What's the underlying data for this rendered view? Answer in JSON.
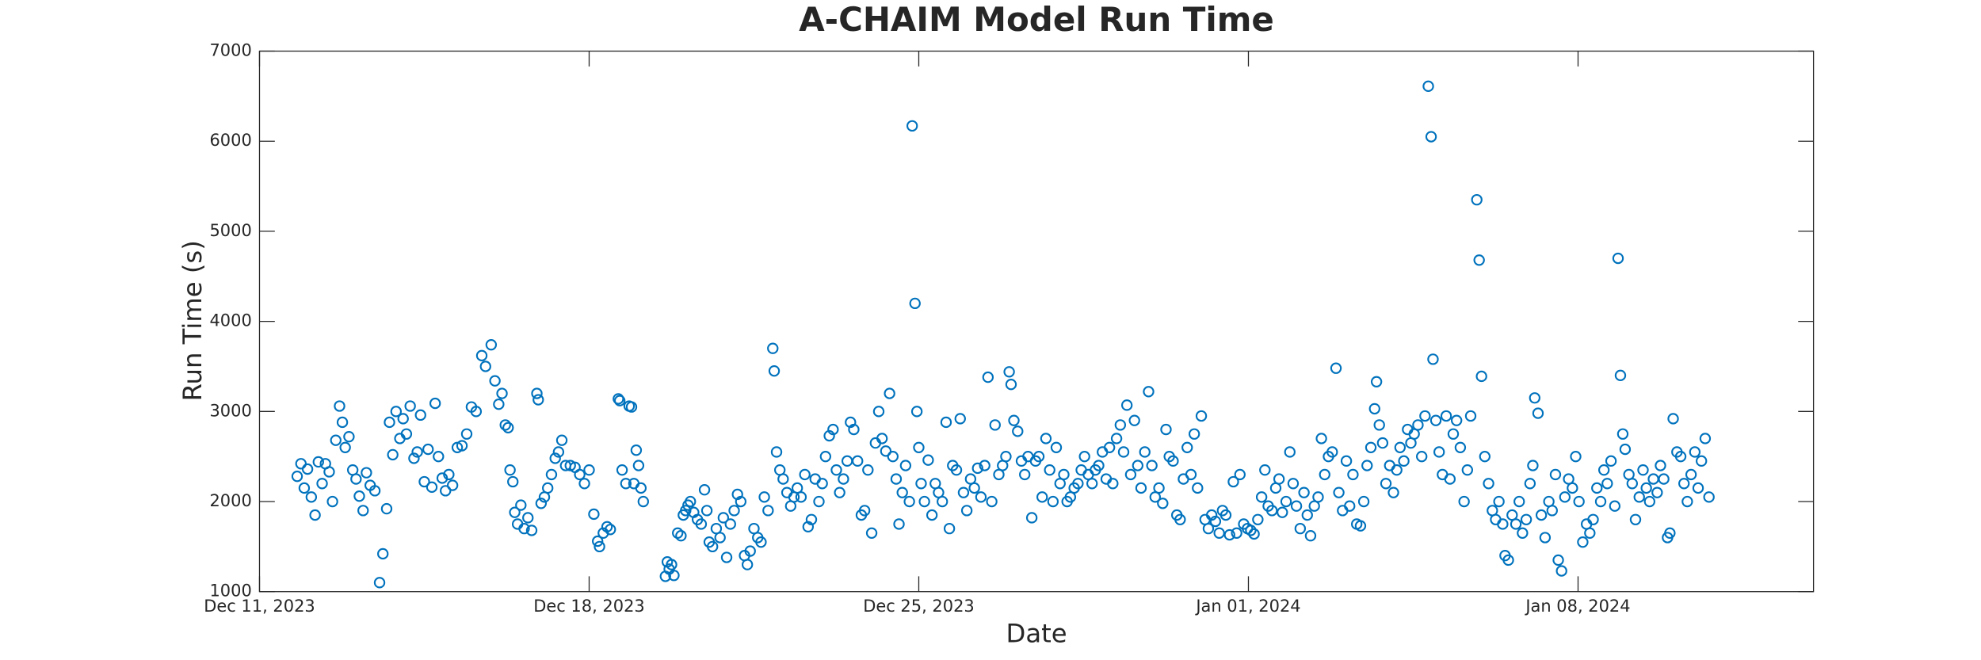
{
  "chart_data": {
    "type": "scatter",
    "title": "A-CHAIM Model Run Time",
    "xlabel": "Date",
    "ylabel": "Run Time (s)",
    "color": "#0072BD",
    "xlim": [
      0,
      33
    ],
    "xticks": [
      {
        "value": 0,
        "label": "Dec 11, 2023"
      },
      {
        "value": 7,
        "label": "Dec 18, 2023"
      },
      {
        "value": 14,
        "label": "Dec 25, 2023"
      },
      {
        "value": 21,
        "label": "Jan 01, 2024"
      },
      {
        "value": 28,
        "label": "Jan 08, 2024"
      }
    ],
    "ylim": [
      1000,
      7000
    ],
    "yticks": [
      1000,
      2000,
      3000,
      4000,
      5000,
      6000,
      7000
    ],
    "x": [
      0.8,
      0.88,
      0.95,
      1.02,
      1.1,
      1.18,
      1.25,
      1.33,
      1.4,
      1.48,
      1.55,
      1.62,
      1.7,
      1.76,
      1.82,
      1.9,
      1.98,
      2.05,
      2.12,
      2.2,
      2.27,
      2.35,
      2.45,
      2.55,
      2.62,
      2.7,
      2.76,
      2.83,
      2.9,
      2.98,
      3.05,
      3.12,
      3.2,
      3.28,
      3.35,
      3.42,
      3.5,
      3.58,
      3.66,
      3.73,
      3.8,
      3.88,
      3.95,
      4.02,
      4.1,
      4.2,
      4.3,
      4.4,
      4.5,
      4.6,
      4.72,
      4.8,
      4.92,
      5.0,
      5.08,
      5.15,
      5.22,
      5.28,
      5.32,
      5.38,
      5.42,
      5.48,
      5.55,
      5.62,
      5.7,
      5.78,
      5.89,
      5.92,
      5.98,
      6.05,
      6.12,
      6.2,
      6.28,
      6.35,
      6.42,
      6.5,
      6.6,
      6.7,
      6.8,
      6.9,
      7.0,
      7.1,
      7.18,
      7.22,
      7.3,
      7.38,
      7.45,
      7.62,
      7.65,
      7.7,
      7.78,
      7.85,
      7.9,
      7.95,
      8.0,
      8.05,
      8.1,
      8.15,
      8.62,
      8.66,
      8.7,
      8.75,
      8.8,
      8.88,
      8.95,
      9.0,
      9.05,
      9.1,
      9.15,
      9.22,
      9.3,
      9.38,
      9.45,
      9.5,
      9.55,
      9.62,
      9.7,
      9.78,
      9.85,
      9.92,
      10.0,
      10.08,
      10.15,
      10.22,
      10.3,
      10.36,
      10.42,
      10.5,
      10.58,
      10.65,
      10.72,
      10.8,
      10.9,
      10.93,
      10.98,
      11.05,
      11.12,
      11.2,
      11.28,
      11.35,
      11.42,
      11.5,
      11.58,
      11.65,
      11.72,
      11.8,
      11.88,
      11.95,
      12.02,
      12.1,
      12.18,
      12.25,
      12.32,
      12.4,
      12.48,
      12.55,
      12.62,
      12.7,
      12.78,
      12.85,
      12.92,
      13.0,
      13.08,
      13.15,
      13.22,
      13.3,
      13.38,
      13.45,
      13.52,
      13.58,
      13.65,
      13.72,
      13.8,
      13.86,
      13.92,
      13.96,
      14.0,
      14.05,
      14.12,
      14.2,
      14.28,
      14.35,
      14.42,
      14.5,
      14.58,
      14.65,
      14.72,
      14.8,
      14.88,
      14.95,
      15.02,
      15.1,
      15.18,
      15.25,
      15.32,
      15.4,
      15.47,
      15.55,
      15.62,
      15.7,
      15.78,
      15.85,
      15.92,
      15.96,
      16.02,
      16.1,
      16.18,
      16.25,
      16.32,
      16.4,
      16.48,
      16.55,
      16.62,
      16.7,
      16.78,
      16.85,
      16.92,
      17.0,
      17.08,
      17.15,
      17.22,
      17.3,
      17.38,
      17.45,
      17.52,
      17.6,
      17.68,
      17.75,
      17.82,
      17.9,
      17.98,
      18.05,
      18.12,
      18.2,
      18.28,
      18.35,
      18.42,
      18.5,
      18.58,
      18.65,
      18.72,
      18.8,
      18.88,
      18.95,
      19.02,
      19.1,
      19.18,
      19.25,
      19.32,
      19.4,
      19.48,
      19.55,
      19.62,
      19.7,
      19.78,
      19.85,
      19.92,
      20.0,
      20.08,
      20.15,
      20.22,
      20.3,
      20.38,
      20.45,
      20.52,
      20.6,
      20.68,
      20.75,
      20.82,
      20.9,
      20.98,
      21.05,
      21.12,
      21.2,
      21.28,
      21.35,
      21.42,
      21.5,
      21.58,
      21.65,
      21.72,
      21.8,
      21.88,
      21.95,
      22.02,
      22.1,
      22.18,
      22.25,
      22.32,
      22.4,
      22.48,
      22.55,
      22.62,
      22.7,
      22.78,
      22.86,
      22.92,
      23.0,
      23.08,
      23.15,
      23.22,
      23.3,
      23.38,
      23.45,
      23.52,
      23.6,
      23.68,
      23.72,
      23.78,
      23.85,
      23.92,
      24.0,
      24.08,
      24.15,
      24.22,
      24.3,
      24.38,
      24.45,
      24.52,
      24.6,
      24.68,
      24.75,
      24.82,
      24.88,
      24.92,
      24.98,
      25.05,
      25.12,
      25.2,
      25.28,
      25.35,
      25.42,
      25.5,
      25.58,
      25.65,
      25.72,
      25.85,
      25.9,
      25.95,
      26.02,
      26.1,
      26.18,
      26.25,
      26.32,
      26.4,
      26.45,
      26.52,
      26.6,
      26.68,
      26.75,
      26.82,
      26.9,
      26.98,
      27.04,
      27.08,
      27.15,
      27.22,
      27.3,
      27.38,
      27.45,
      27.52,
      27.58,
      27.65,
      27.72,
      27.8,
      27.88,
      27.95,
      28.02,
      28.1,
      28.18,
      28.25,
      28.32,
      28.4,
      28.48,
      28.55,
      28.62,
      28.7,
      28.78,
      28.85,
      28.9,
      28.95,
      29.0,
      29.08,
      29.15,
      29.22,
      29.3,
      29.38,
      29.45,
      29.52,
      29.6,
      29.68,
      29.75,
      29.82,
      29.9,
      29.95,
      30.02,
      30.1,
      30.18,
      30.25,
      30.32,
      30.4,
      30.48,
      30.55,
      30.62,
      30.7,
      30.78
    ],
    "values": [
      2280,
      2420,
      2150,
      2360,
      2050,
      1850,
      2440,
      2200,
      2420,
      2330,
      2000,
      2680,
      3060,
      2880,
      2600,
      2720,
      2350,
      2250,
      2060,
      1900,
      2320,
      2180,
      2120,
      1100,
      1420,
      1920,
      2880,
      2520,
      3000,
      2700,
      2920,
      2750,
      3060,
      2480,
      2550,
      2960,
      2220,
      2580,
      2160,
      3090,
      2500,
      2260,
      2120,
      2300,
      2180,
      2600,
      2620,
      2750,
      3050,
      3000,
      3620,
      3500,
      3740,
      3340,
      3080,
      3200,
      2850,
      2820,
      2350,
      2220,
      1880,
      1750,
      1960,
      1700,
      1820,
      1680,
      3200,
      3130,
      1980,
      2050,
      2150,
      2300,
      2480,
      2550,
      2680,
      2400,
      2400,
      2380,
      2300,
      2200,
      2350,
      1860,
      1560,
      1500,
      1650,
      1720,
      1690,
      3140,
      3120,
      2350,
      2200,
      3060,
      3050,
      2200,
      2570,
      2400,
      2150,
      2000,
      1170,
      1330,
      1250,
      1300,
      1180,
      1650,
      1620,
      1850,
      1900,
      1960,
      2000,
      1880,
      1800,
      1750,
      2130,
      1900,
      1550,
      1500,
      1700,
      1600,
      1820,
      1380,
      1750,
      1900,
      2080,
      2000,
      1400,
      1300,
      1450,
      1700,
      1600,
      1550,
      2050,
      1900,
      3700,
      3450,
      2550,
      2350,
      2250,
      2100,
      1950,
      2050,
      2150,
      2050,
      2300,
      1720,
      1800,
      2250,
      2000,
      2200,
      2500,
      2730,
      2800,
      2350,
      2100,
      2250,
      2450,
      2880,
      2800,
      2450,
      1850,
      1900,
      2350,
      1650,
      2650,
      3000,
      2700,
      2560,
      3200,
      2500,
      2250,
      1750,
      2100,
      2400,
      2000,
      6170,
      4200,
      3000,
      2600,
      2200,
      2000,
      2460,
      1850,
      2200,
      2100,
      2000,
      2880,
      1700,
      2400,
      2350,
      2920,
      2100,
      1900,
      2250,
      2150,
      2370,
      2050,
      2400,
      3380,
      2000,
      2850,
      2300,
      2400,
      2500,
      3440,
      3300,
      2900,
      2780,
      2450,
      2300,
      2500,
      1820,
      2450,
      2500,
      2050,
      2700,
      2350,
      2000,
      2600,
      2200,
      2300,
      2000,
      2050,
      2150,
      2200,
      2350,
      2500,
      2300,
      2200,
      2350,
      2400,
      2550,
      2250,
      2600,
      2200,
      2700,
      2850,
      2550,
      3070,
      2300,
      2900,
      2400,
      2150,
      2550,
      3220,
      2400,
      2050,
      2150,
      1980,
      2800,
      2500,
      2450,
      1850,
      1800,
      2250,
      2600,
      2300,
      2750,
      2150,
      2950,
      1800,
      1700,
      1850,
      1780,
      1650,
      1900,
      1850,
      1630,
      2220,
      1650,
      2300,
      1750,
      1700,
      1680,
      1640,
      1800,
      2050,
      2350,
      1950,
      1900,
      2150,
      2250,
      1880,
      2000,
      2550,
      2200,
      1950,
      1700,
      2100,
      1850,
      1620,
      1950,
      2050,
      2700,
      2300,
      2500,
      2550,
      3480,
      2100,
      1900,
      2450,
      1950,
      2300,
      1750,
      1730,
      2000,
      2400,
      2600,
      3030,
      3330,
      2850,
      2650,
      2200,
      2400,
      2100,
      2350,
      2600,
      2450,
      2800,
      2650,
      2750,
      2850,
      2500,
      2950,
      6610,
      6050,
      3580,
      2900,
      2550,
      2300,
      2950,
      2250,
      2750,
      2900,
      2600,
      2000,
      2350,
      2950,
      5350,
      4680,
      3390,
      2500,
      2200,
      1900,
      1800,
      2000,
      1750,
      1400,
      1350,
      1850,
      1750,
      2000,
      1650,
      1800,
      2200,
      2400,
      3150,
      2980,
      1850,
      1600,
      2000,
      1900,
      2300,
      1350,
      1230,
      2050,
      2250,
      2150,
      2500,
      2000,
      1550,
      1750,
      1650,
      1800,
      2150,
      2000,
      2350,
      2200,
      2450,
      1950,
      4700,
      3400,
      2750,
      2580,
      2300,
      2200,
      1800,
      2050,
      2350,
      2150,
      2000,
      2250,
      2100,
      2400,
      2250,
      1600,
      1650,
      2920,
      2550,
      2500,
      2200,
      2000,
      2300,
      2550,
      2150,
      2450,
      2700,
      2050
    ]
  }
}
